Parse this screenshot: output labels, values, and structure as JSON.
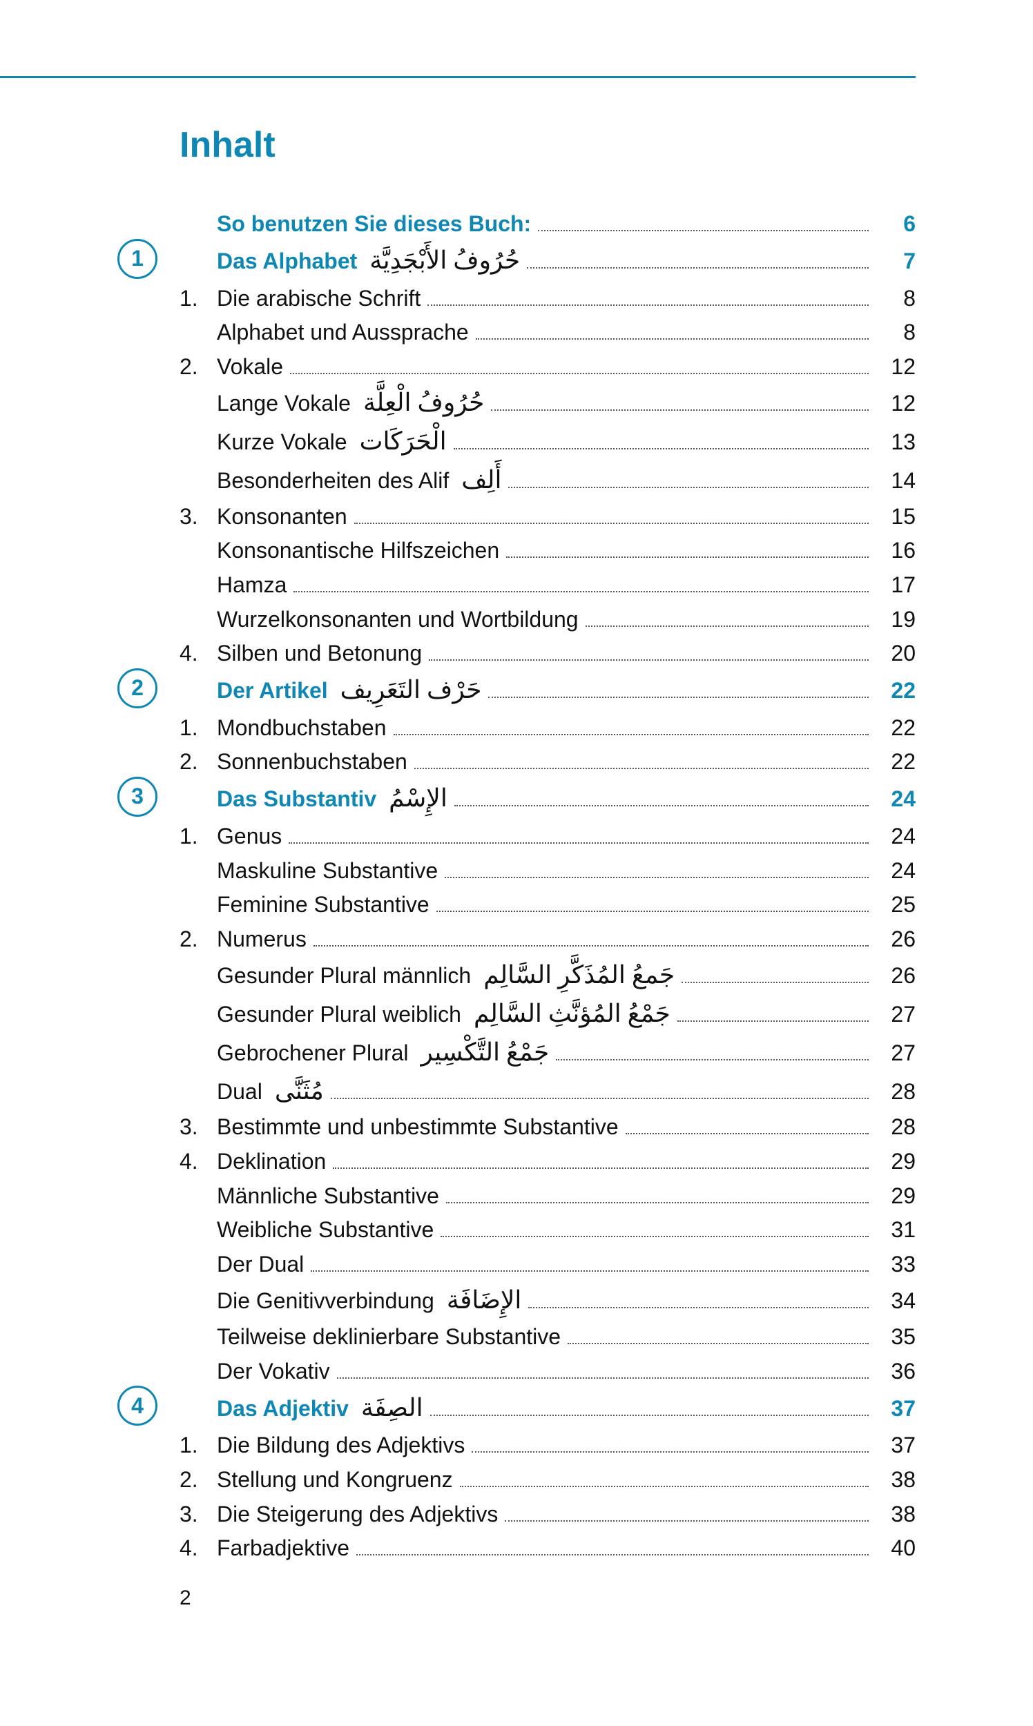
{
  "title": "Inhalt",
  "page_number": "2",
  "colors": {
    "accent": "#0e87b5",
    "text": "#111",
    "leader": "#555"
  },
  "rows": [
    {
      "badge": "",
      "num": "",
      "indent": 0,
      "label": "So benutzen Sie dieses Buch:",
      "arabic": "",
      "page": "6",
      "heading": true
    },
    {
      "badge": "1",
      "num": "",
      "indent": 0,
      "label": "Das Alphabet",
      "arabic": "حُرُوفُ الأَبْجَدِيَّة",
      "page": "7",
      "heading": true
    },
    {
      "badge": "",
      "num": "1.",
      "indent": 0,
      "label": "Die arabische Schrift",
      "arabic": "",
      "page": "8",
      "heading": false
    },
    {
      "badge": "",
      "num": "",
      "indent": 1,
      "label": "Alphabet und Aussprache",
      "arabic": "",
      "page": "8",
      "heading": false
    },
    {
      "badge": "",
      "num": "2.",
      "indent": 0,
      "label": "Vokale",
      "arabic": "",
      "page": "12",
      "heading": false
    },
    {
      "badge": "",
      "num": "",
      "indent": 1,
      "label": "Lange Vokale",
      "arabic": "حُرُوفُ الْعِلَّة",
      "page": "12",
      "heading": false
    },
    {
      "badge": "",
      "num": "",
      "indent": 1,
      "label": "Kurze Vokale",
      "arabic": "الْحَرَكَات",
      "page": "13",
      "heading": false
    },
    {
      "badge": "",
      "num": "",
      "indent": 1,
      "label": "Besonderheiten des Alif",
      "arabic": "أَلِف",
      "page": "14",
      "heading": false
    },
    {
      "badge": "",
      "num": "3.",
      "indent": 0,
      "label": "Konsonanten",
      "arabic": "",
      "page": "15",
      "heading": false
    },
    {
      "badge": "",
      "num": "",
      "indent": 1,
      "label": "Konsonantische Hilfszeichen",
      "arabic": "",
      "page": "16",
      "heading": false
    },
    {
      "badge": "",
      "num": "",
      "indent": 1,
      "label": "Hamza",
      "arabic": "",
      "page": "17",
      "heading": false
    },
    {
      "badge": "",
      "num": "",
      "indent": 1,
      "label": "Wurzelkonsonanten und Wortbildung",
      "arabic": "",
      "page": "19",
      "heading": false
    },
    {
      "badge": "",
      "num": "4.",
      "indent": 0,
      "label": "Silben und Betonung",
      "arabic": "",
      "page": "20",
      "heading": false
    },
    {
      "badge": "2",
      "num": "",
      "indent": 0,
      "label": "Der Artikel",
      "arabic": "حَرْف التَعَرِيف",
      "page": "22",
      "heading": true
    },
    {
      "badge": "",
      "num": "1.",
      "indent": 0,
      "label": "Mondbuchstaben",
      "arabic": "",
      "page": "22",
      "heading": false
    },
    {
      "badge": "",
      "num": "2.",
      "indent": 0,
      "label": "Sonnenbuchstaben",
      "arabic": "",
      "page": "22",
      "heading": false
    },
    {
      "badge": "3",
      "num": "",
      "indent": 0,
      "label": "Das Substantiv",
      "arabic": "الإِسْمُ",
      "page": "24",
      "heading": true
    },
    {
      "badge": "",
      "num": "1.",
      "indent": 0,
      "label": "Genus",
      "arabic": "",
      "page": "24",
      "heading": false
    },
    {
      "badge": "",
      "num": "",
      "indent": 1,
      "label": "Maskuline Substantive",
      "arabic": "",
      "page": "24",
      "heading": false
    },
    {
      "badge": "",
      "num": "",
      "indent": 1,
      "label": "Feminine Substantive",
      "arabic": "",
      "page": "25",
      "heading": false
    },
    {
      "badge": "",
      "num": "2.",
      "indent": 0,
      "label": "Numerus",
      "arabic": "",
      "page": "26",
      "heading": false
    },
    {
      "badge": "",
      "num": "",
      "indent": 1,
      "label": "Gesunder Plural männlich",
      "arabic": "جَمعُ المُذَكَّرِ السَّالِم",
      "page": "26",
      "heading": false
    },
    {
      "badge": "",
      "num": "",
      "indent": 1,
      "label": "Gesunder Plural weiblich",
      "arabic": "جَمْعُ المُؤنَّثِ السَّالِم",
      "page": "27",
      "heading": false
    },
    {
      "badge": "",
      "num": "",
      "indent": 1,
      "label": "Gebrochener Plural",
      "arabic": "جَمْعُ التَّكْسِير",
      "page": "27",
      "heading": false
    },
    {
      "badge": "",
      "num": "",
      "indent": 1,
      "label": "Dual",
      "arabic": "مُثَنَّى",
      "page": "28",
      "heading": false
    },
    {
      "badge": "",
      "num": "3.",
      "indent": 0,
      "label": "Bestimmte und unbestimmte Substantive",
      "arabic": "",
      "page": "28",
      "heading": false
    },
    {
      "badge": "",
      "num": "4.",
      "indent": 0,
      "label": "Deklination",
      "arabic": "",
      "page": "29",
      "heading": false
    },
    {
      "badge": "",
      "num": "",
      "indent": 1,
      "label": "Männliche Substantive",
      "arabic": "",
      "page": "29",
      "heading": false
    },
    {
      "badge": "",
      "num": "",
      "indent": 1,
      "label": "Weibliche Substantive",
      "arabic": "",
      "page": "31",
      "heading": false
    },
    {
      "badge": "",
      "num": "",
      "indent": 1,
      "label": "Der Dual",
      "arabic": "",
      "page": "33",
      "heading": false
    },
    {
      "badge": "",
      "num": "",
      "indent": 1,
      "label": "Die Genitivverbindung",
      "arabic": "الإِضَافَة",
      "page": "34",
      "heading": false
    },
    {
      "badge": "",
      "num": "",
      "indent": 1,
      "label": "Teilweise deklinierbare Substantive",
      "arabic": "",
      "page": "35",
      "heading": false
    },
    {
      "badge": "",
      "num": "",
      "indent": 1,
      "label": "Der Vokativ",
      "arabic": "",
      "page": "36",
      "heading": false
    },
    {
      "badge": "4",
      "num": "",
      "indent": 0,
      "label": "Das Adjektiv",
      "arabic": "الصِفَة",
      "page": "37",
      "heading": true
    },
    {
      "badge": "",
      "num": "1.",
      "indent": 0,
      "label": "Die Bildung des Adjektivs",
      "arabic": "",
      "page": "37",
      "heading": false
    },
    {
      "badge": "",
      "num": "2.",
      "indent": 0,
      "label": "Stellung und Kongruenz",
      "arabic": "",
      "page": "38",
      "heading": false
    },
    {
      "badge": "",
      "num": "3.",
      "indent": 0,
      "label": "Die Steigerung des Adjektivs",
      "arabic": "",
      "page": "38",
      "heading": false
    },
    {
      "badge": "",
      "num": "4.",
      "indent": 0,
      "label": "Farbadjektive",
      "arabic": "",
      "page": "40",
      "heading": false
    }
  ]
}
